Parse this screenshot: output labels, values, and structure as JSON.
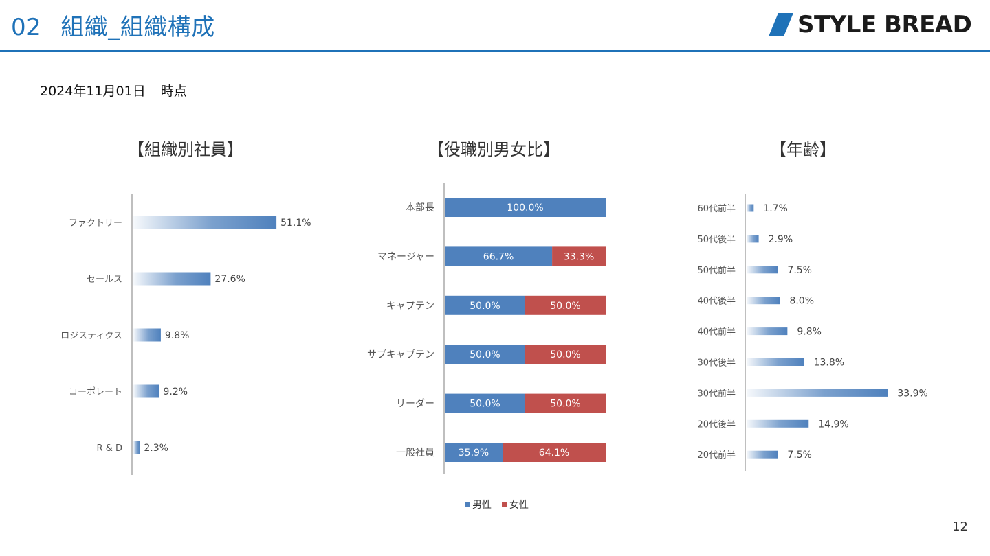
{
  "header": {
    "section_number": "02",
    "title": "組織_組織構成"
  },
  "logo": {
    "text": "STYLE BREAD"
  },
  "as_of": {
    "date": "2024年11月01日",
    "suffix": "時点"
  },
  "page_number": "12",
  "colors": {
    "accent": "#1f72b8",
    "male": "#4f81bd",
    "female": "#c0504d"
  },
  "chart_data": [
    {
      "type": "bar",
      "orientation": "horizontal",
      "title": "【組織別社員】",
      "categories": [
        "ファクトリー",
        "セールス",
        "ロジスティクス",
        "コーポレート",
        "R & D"
      ],
      "values": [
        51.1,
        27.6,
        9.8,
        9.2,
        2.3
      ],
      "data_labels": [
        "51.1%",
        "27.6%",
        "9.8%",
        "9.2%",
        "2.3%"
      ],
      "xlim": [
        0,
        55
      ],
      "grid": false
    },
    {
      "type": "bar",
      "orientation": "horizontal",
      "stacked": true,
      "title": "【役職別男女比】",
      "categories": [
        "本部長",
        "マネージャー",
        "キャプテン",
        "サブキャプテン",
        "リーダー",
        "一般社員"
      ],
      "series": [
        {
          "name": "男性",
          "values": [
            100.0,
            66.7,
            50.0,
            50.0,
            50.0,
            35.9
          ],
          "data_labels": [
            "100.0%",
            "66.7%",
            "50.0%",
            "50.0%",
            "50.0%",
            "35.9%"
          ]
        },
        {
          "name": "女性",
          "values": [
            0,
            33.3,
            50.0,
            50.0,
            50.0,
            64.1
          ],
          "data_labels": [
            "",
            "33.3%",
            "50.0%",
            "50.0%",
            "50.0%",
            "64.1%"
          ]
        }
      ],
      "xlim": [
        0,
        100
      ],
      "legend": "bottom",
      "grid": false
    },
    {
      "type": "bar",
      "orientation": "horizontal",
      "title": "【年齢】",
      "categories": [
        "60代前半",
        "50代後半",
        "50代前半",
        "40代後半",
        "40代前半",
        "30代後半",
        "30代前半",
        "20代後半",
        "20代前半"
      ],
      "values": [
        1.7,
        2.9,
        7.5,
        8.0,
        9.8,
        13.8,
        33.9,
        14.9,
        7.5
      ],
      "data_labels": [
        "1.7%",
        "2.9%",
        "7.5%",
        "8.0%",
        "9.8%",
        "13.8%",
        "33.9%",
        "14.9%",
        "7.5%"
      ],
      "xlim": [
        0,
        35
      ],
      "grid": false
    }
  ]
}
